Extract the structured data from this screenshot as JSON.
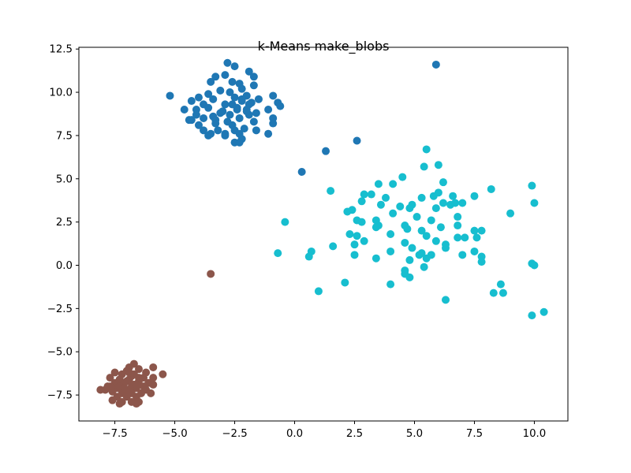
{
  "chart_data": {
    "type": "scatter",
    "title": "k-Means make_blobs",
    "xlabel": "",
    "ylabel": "",
    "xlim": [
      -9.0,
      11.4
    ],
    "ylim": [
      -9.0,
      12.6
    ],
    "grid": false,
    "legend": "none",
    "xticks": [
      {
        "value": -7.5,
        "label": "−7.5"
      },
      {
        "value": -5.0,
        "label": "−5.0"
      },
      {
        "value": -2.5,
        "label": "−2.5"
      },
      {
        "value": 0.0,
        "label": "0.0"
      },
      {
        "value": 2.5,
        "label": "2.5"
      },
      {
        "value": 5.0,
        "label": "5.0"
      },
      {
        "value": 7.5,
        "label": "7.5"
      },
      {
        "value": 10.0,
        "label": "10.0"
      }
    ],
    "yticks": [
      {
        "value": -7.5,
        "label": "−7.5"
      },
      {
        "value": -5.0,
        "label": "−5.0"
      },
      {
        "value": -2.5,
        "label": "−2.5"
      },
      {
        "value": 0.0,
        "label": "0.0"
      },
      {
        "value": 2.5,
        "label": "2.5"
      },
      {
        "value": 5.0,
        "label": "5.0"
      },
      {
        "value": 7.5,
        "label": "7.5"
      },
      {
        "value": 10.0,
        "label": "10.0"
      },
      {
        "value": 12.5,
        "label": "12.5"
      }
    ],
    "series": [
      {
        "color": "#1f77b4",
        "points": [
          [
            -2.8,
            11.7
          ],
          [
            -2.5,
            11.5
          ],
          [
            -1.9,
            11.2
          ],
          [
            -2.9,
            11.0
          ],
          [
            -3.3,
            10.9
          ],
          [
            -1.7,
            10.9
          ],
          [
            -3.5,
            10.6
          ],
          [
            -2.6,
            10.6
          ],
          [
            -1.7,
            10.4
          ],
          [
            -2.3,
            10.5
          ],
          [
            -5.2,
            9.8
          ],
          [
            -2.2,
            10.2
          ],
          [
            -3.1,
            10.1
          ],
          [
            -2.7,
            10.0
          ],
          [
            -3.6,
            9.9
          ],
          [
            -4.0,
            9.7
          ],
          [
            -2.0,
            9.8
          ],
          [
            -1.5,
            9.6
          ],
          [
            -3.4,
            9.6
          ],
          [
            -2.5,
            9.7
          ],
          [
            -0.9,
            9.8
          ],
          [
            -1.9,
            9.3
          ],
          [
            -4.3,
            9.5
          ],
          [
            -3.8,
            9.3
          ],
          [
            -2.9,
            9.3
          ],
          [
            -2.2,
            9.5
          ],
          [
            -1.8,
            9.4
          ],
          [
            -0.7,
            9.4
          ],
          [
            -0.6,
            9.2
          ],
          [
            -1.1,
            9.0
          ],
          [
            -4.6,
            9.0
          ],
          [
            -4.1,
            9.0
          ],
          [
            -3.6,
            9.1
          ],
          [
            -3.0,
            8.9
          ],
          [
            -2.4,
            9.0
          ],
          [
            -1.6,
            8.8
          ],
          [
            -4.1,
            8.7
          ],
          [
            -3.4,
            8.6
          ],
          [
            -2.7,
            8.7
          ],
          [
            -1.9,
            8.7
          ],
          [
            -0.9,
            8.5
          ],
          [
            -4.4,
            8.4
          ],
          [
            -3.8,
            8.5
          ],
          [
            -3.3,
            8.4
          ],
          [
            -2.8,
            8.3
          ],
          [
            -2.3,
            8.5
          ],
          [
            -1.7,
            8.3
          ],
          [
            -0.9,
            8.2
          ],
          [
            -4.0,
            8.1
          ],
          [
            -3.3,
            8.2
          ],
          [
            -2.6,
            8.1
          ],
          [
            -2.1,
            7.9
          ],
          [
            -1.6,
            7.8
          ],
          [
            -3.8,
            7.8
          ],
          [
            -3.2,
            7.8
          ],
          [
            -2.5,
            7.8
          ],
          [
            -1.1,
            7.6
          ],
          [
            -3.5,
            7.6
          ],
          [
            -2.9,
            7.6
          ],
          [
            -2.3,
            7.6
          ],
          [
            -2.2,
            7.3
          ],
          [
            -2.5,
            7.1
          ],
          [
            -2.3,
            7.1
          ],
          [
            -2.9,
            7.5
          ],
          [
            -3.6,
            7.5
          ],
          [
            -4.3,
            8.4
          ],
          [
            -2.0,
            8.9
          ],
          [
            -2.6,
            9.3
          ],
          [
            -2.4,
            9.1
          ],
          [
            -3.1,
            8.8
          ],
          [
            -2.0,
            9.0
          ],
          [
            -2.2,
            9.6
          ],
          [
            5.9,
            11.6
          ],
          [
            2.6,
            7.2
          ],
          [
            1.3,
            6.6
          ],
          [
            0.3,
            5.4
          ]
        ]
      },
      {
        "color": "#17becf",
        "points": [
          [
            5.5,
            6.7
          ],
          [
            5.4,
            5.7
          ],
          [
            6.0,
            5.8
          ],
          [
            1.5,
            4.3
          ],
          [
            2.9,
            4.1
          ],
          [
            3.2,
            4.1
          ],
          [
            3.5,
            4.7
          ],
          [
            4.1,
            4.7
          ],
          [
            4.5,
            5.1
          ],
          [
            6.2,
            4.8
          ],
          [
            5.8,
            4.0
          ],
          [
            6.0,
            4.2
          ],
          [
            8.2,
            4.4
          ],
          [
            9.9,
            4.6
          ],
          [
            2.4,
            3.2
          ],
          [
            2.8,
            3.7
          ],
          [
            3.6,
            3.5
          ],
          [
            3.8,
            3.9
          ],
          [
            4.4,
            3.4
          ],
          [
            4.9,
            3.5
          ],
          [
            5.3,
            3.9
          ],
          [
            5.9,
            3.3
          ],
          [
            6.2,
            3.6
          ],
          [
            6.5,
            3.5
          ],
          [
            6.7,
            3.6
          ],
          [
            6.6,
            4.0
          ],
          [
            7.0,
            3.6
          ],
          [
            7.5,
            4.0
          ],
          [
            9.0,
            3.0
          ],
          [
            10.0,
            3.6
          ],
          [
            -0.4,
            2.5
          ],
          [
            2.2,
            3.1
          ],
          [
            2.6,
            2.6
          ],
          [
            2.8,
            2.5
          ],
          [
            3.4,
            2.6
          ],
          [
            3.5,
            2.3
          ],
          [
            4.1,
            3.0
          ],
          [
            4.6,
            2.3
          ],
          [
            4.8,
            3.3
          ],
          [
            5.1,
            2.8
          ],
          [
            5.3,
            2.0
          ],
          [
            5.7,
            2.6
          ],
          [
            6.1,
            2.2
          ],
          [
            6.8,
            2.8
          ],
          [
            6.8,
            2.3
          ],
          [
            7.5,
            2.0
          ],
          [
            7.8,
            2.0
          ],
          [
            2.3,
            1.8
          ],
          [
            2.6,
            1.7
          ],
          [
            2.9,
            1.4
          ],
          [
            3.4,
            2.2
          ],
          [
            4.0,
            1.8
          ],
          [
            4.7,
            2.1
          ],
          [
            5.5,
            1.7
          ],
          [
            5.9,
            1.4
          ],
          [
            6.3,
            1.2
          ],
          [
            6.8,
            1.6
          ],
          [
            7.1,
            1.6
          ],
          [
            7.6,
            1.6
          ],
          [
            -0.7,
            0.7
          ],
          [
            0.7,
            0.8
          ],
          [
            0.6,
            0.5
          ],
          [
            1.6,
            1.1
          ],
          [
            2.5,
            1.2
          ],
          [
            2.5,
            0.6
          ],
          [
            3.4,
            0.4
          ],
          [
            4.0,
            0.8
          ],
          [
            4.6,
            1.3
          ],
          [
            4.9,
            1.0
          ],
          [
            5.2,
            0.6
          ],
          [
            5.3,
            0.7
          ],
          [
            5.5,
            0.4
          ],
          [
            5.7,
            0.6
          ],
          [
            6.3,
            1.0
          ],
          [
            7.0,
            0.6
          ],
          [
            7.5,
            0.8
          ],
          [
            7.8,
            0.5
          ],
          [
            7.8,
            0.2
          ],
          [
            9.9,
            0.1
          ],
          [
            10.0,
            0.0
          ],
          [
            4.8,
            0.3
          ],
          [
            5.4,
            -0.1
          ],
          [
            4.6,
            -0.3
          ],
          [
            4.6,
            -0.5
          ],
          [
            4.8,
            -0.7
          ],
          [
            2.1,
            -1.0
          ],
          [
            4.0,
            -1.1
          ],
          [
            1.0,
            -1.5
          ],
          [
            8.3,
            -1.6
          ],
          [
            8.7,
            -1.6
          ],
          [
            8.6,
            -1.1
          ],
          [
            6.3,
            -2.0
          ],
          [
            9.9,
            -2.9
          ],
          [
            10.4,
            -2.7
          ]
        ]
      },
      {
        "color": "#8c564b",
        "points": [
          [
            -3.5,
            -0.5
          ],
          [
            -5.9,
            -5.9
          ],
          [
            -5.5,
            -6.3
          ],
          [
            -6.7,
            -5.7
          ],
          [
            -6.9,
            -5.9
          ],
          [
            -7.0,
            -6.1
          ],
          [
            -6.5,
            -6.0
          ],
          [
            -6.2,
            -6.2
          ],
          [
            -7.2,
            -6.3
          ],
          [
            -7.5,
            -6.2
          ],
          [
            -6.8,
            -6.4
          ],
          [
            -6.3,
            -6.5
          ],
          [
            -5.9,
            -6.5
          ],
          [
            -7.7,
            -6.5
          ],
          [
            -7.3,
            -6.6
          ],
          [
            -6.9,
            -6.6
          ],
          [
            -6.5,
            -6.7
          ],
          [
            -6.1,
            -6.8
          ],
          [
            -7.5,
            -6.8
          ],
          [
            -7.1,
            -6.8
          ],
          [
            -6.7,
            -6.9
          ],
          [
            -6.3,
            -7.0
          ],
          [
            -5.9,
            -6.9
          ],
          [
            -7.8,
            -7.0
          ],
          [
            -7.4,
            -7.1
          ],
          [
            -7.0,
            -7.2
          ],
          [
            -6.6,
            -7.1
          ],
          [
            -6.2,
            -7.2
          ],
          [
            -7.9,
            -7.2
          ],
          [
            -8.1,
            -7.2
          ],
          [
            -7.6,
            -7.3
          ],
          [
            -7.2,
            -7.4
          ],
          [
            -6.8,
            -7.4
          ],
          [
            -6.4,
            -7.4
          ],
          [
            -6.0,
            -7.4
          ],
          [
            -7.4,
            -7.6
          ],
          [
            -7.0,
            -7.6
          ],
          [
            -6.6,
            -7.6
          ],
          [
            -7.6,
            -7.8
          ],
          [
            -7.2,
            -7.9
          ],
          [
            -6.8,
            -7.9
          ],
          [
            -6.5,
            -7.9
          ],
          [
            -7.3,
            -8.0
          ],
          [
            -6.6,
            -8.0
          ],
          [
            -6.9,
            -6.2
          ],
          [
            -6.7,
            -6.3
          ],
          [
            -7.0,
            -6.7
          ],
          [
            -6.8,
            -7.0
          ],
          [
            -6.5,
            -6.5
          ],
          [
            -7.3,
            -7.0
          ],
          [
            -7.1,
            -7.1
          ],
          [
            -6.6,
            -6.9
          ],
          [
            -6.9,
            -7.3
          ],
          [
            -7.7,
            -7.0
          ]
        ]
      }
    ]
  }
}
